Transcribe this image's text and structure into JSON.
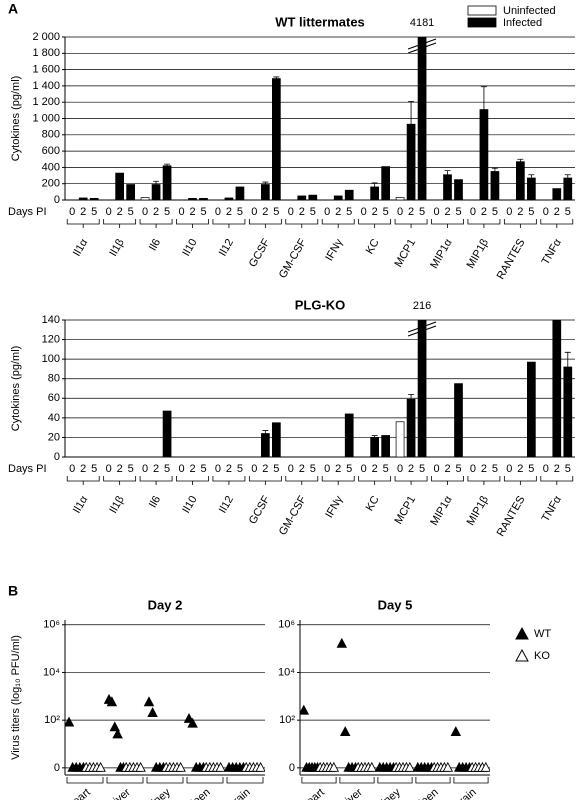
{
  "panels": [
    "A",
    "B"
  ],
  "legend_a": [
    {
      "name": "Uninfected",
      "color": "#ffffff"
    },
    {
      "name": "Infected",
      "color": "#000000"
    }
  ],
  "legend_b": [
    {
      "name": "WT",
      "color": "#000000"
    },
    {
      "name": "KO",
      "color": "#ffffff"
    }
  ],
  "chart_data": [
    {
      "type": "bar",
      "title": "WT littermates",
      "y_label": "Cytokines (pg/ml)",
      "x_label": "Days PI",
      "days": [
        0,
        2,
        5
      ],
      "categories": [
        "Il1α",
        "Il1β",
        "Il6",
        "Il10",
        "Il12",
        "GCSF",
        "GM-CSF",
        "IFNγ",
        "KC",
        "MCP1",
        "MIP1α",
        "MIP1β",
        "RANTES",
        "TNFα"
      ],
      "values": [
        [
          0,
          25,
          20
        ],
        [
          0,
          330,
          190
        ],
        [
          30,
          190,
          420
        ],
        [
          0,
          20,
          20
        ],
        [
          0,
          25,
          160
        ],
        [
          0,
          190,
          1490
        ],
        [
          0,
          50,
          60
        ],
        [
          0,
          50,
          120
        ],
        [
          0,
          160,
          410
        ],
        [
          30,
          930,
          4181
        ],
        [
          0,
          310,
          250
        ],
        [
          0,
          1110,
          350
        ],
        [
          0,
          470,
          270
        ],
        [
          0,
          140,
          270
        ]
      ],
      "errors": [
        [
          null,
          null,
          null
        ],
        [
          null,
          null,
          null
        ],
        [
          null,
          40,
          20
        ],
        [
          null,
          null,
          null
        ],
        [
          null,
          null,
          null
        ],
        [
          null,
          30,
          20
        ],
        [
          null,
          null,
          null
        ],
        [
          null,
          null,
          null
        ],
        [
          null,
          50,
          null
        ],
        [
          null,
          280,
          null
        ],
        [
          null,
          50,
          null
        ],
        [
          null,
          280,
          40
        ],
        [
          null,
          30,
          40
        ],
        [
          null,
          null,
          40
        ]
      ],
      "ylim": [
        0,
        2000
      ],
      "yticks": [
        0,
        200,
        400,
        600,
        800,
        {
          "value": 1000,
          "label": "1 000"
        },
        {
          "value": 1200,
          "label": "1 200"
        },
        {
          "value": 1400,
          "label": "1 400"
        },
        {
          "value": 1600,
          "label": "1 600"
        },
        {
          "value": 1800,
          "label": "1 800"
        },
        {
          "value": 2000,
          "label": "2 000"
        }
      ],
      "grid": true
    },
    {
      "type": "bar",
      "title": "PLG-KO",
      "y_label": "Cytokines (pg/ml)",
      "x_label": "Days PI",
      "days": [
        0,
        2,
        5
      ],
      "categories": [
        "Il1α",
        "Il1β",
        "Il6",
        "Il10",
        "Il12",
        "GCSF",
        "GM-CSF",
        "IFNγ",
        "KC",
        "MCP1",
        "MIP1α",
        "MIP1β",
        "RANTES",
        "TNFα"
      ],
      "values": [
        [
          0,
          0,
          0
        ],
        [
          0,
          0,
          0
        ],
        [
          0,
          0,
          47
        ],
        [
          0,
          0,
          0
        ],
        [
          0,
          0,
          0
        ],
        [
          0,
          24,
          35
        ],
        [
          0,
          0,
          0
        ],
        [
          0,
          0,
          44
        ],
        [
          0,
          20,
          22
        ],
        [
          36,
          59,
          216
        ],
        [
          0,
          0,
          75
        ],
        [
          0,
          0,
          0
        ],
        [
          0,
          0,
          97
        ],
        [
          0,
          140,
          92
        ]
      ],
      "errors": [
        [
          null,
          null,
          null
        ],
        [
          null,
          null,
          null
        ],
        [
          null,
          null,
          null
        ],
        [
          null,
          null,
          null
        ],
        [
          null,
          null,
          null
        ],
        [
          null,
          3,
          null
        ],
        [
          null,
          null,
          null
        ],
        [
          null,
          null,
          null
        ],
        [
          null,
          2,
          null
        ],
        [
          null,
          5,
          null
        ],
        [
          null,
          null,
          null
        ],
        [
          null,
          null,
          null
        ],
        [
          null,
          null,
          null
        ],
        [
          null,
          null,
          15
        ]
      ],
      "ylim": [
        0,
        140
      ],
      "yticks": [
        0,
        20,
        40,
        60,
        80,
        100,
        120,
        140
      ],
      "grid": true
    },
    {
      "type": "scatter",
      "title": "Day 2",
      "y_label": "Virus titers (log₁₀ PFU/ml)",
      "categories": [
        "Heart",
        "Liver",
        "Kidney",
        "Spleen",
        "Brain"
      ],
      "series": [
        {
          "values": [
            [
              1.9,
              0,
              0,
              0,
              0
            ],
            [
              2.85,
              2.75,
              1.7,
              1.4,
              0,
              0
            ],
            [
              2.75,
              2.3,
              0,
              0,
              0
            ],
            [
              2.05,
              1.85,
              0,
              0,
              0
            ],
            [
              0,
              0,
              0,
              0,
              0
            ]
          ]
        },
        {
          "values": [
            [
              0,
              0,
              0,
              0,
              0
            ],
            [
              0,
              0,
              0,
              0,
              0
            ],
            [
              0,
              0,
              0,
              0,
              0
            ],
            [
              0,
              0,
              0,
              0,
              0
            ],
            [
              0,
              0,
              0,
              0,
              0
            ]
          ]
        }
      ],
      "ylim": [
        -0.3,
        6.2
      ],
      "yticks": [
        0,
        {
          "value": 2,
          "label": "10²"
        },
        {
          "value": 4,
          "label": "10⁴"
        },
        {
          "value": 6,
          "label": "10⁶"
        }
      ],
      "grid": true
    },
    {
      "type": "scatter",
      "title": "Day 5",
      "categories": [
        "Heart",
        "Liver",
        "Kidney",
        "Spleen",
        "Brain"
      ],
      "series": [
        {
          "values": [
            [
              2.4,
              0,
              0,
              0,
              0,
              0
            ],
            [
              5.2,
              1.5,
              0,
              0,
              0
            ],
            [
              0,
              0,
              0,
              0,
              0
            ],
            [
              0,
              0,
              0,
              0,
              0
            ],
            [
              1.5,
              0,
              0,
              0,
              0
            ]
          ]
        },
        {
          "values": [
            [
              0,
              0,
              0,
              0,
              0
            ],
            [
              0,
              0,
              0,
              0,
              0
            ],
            [
              0,
              0,
              0,
              0,
              0
            ],
            [
              0,
              0,
              0,
              0,
              0
            ],
            [
              0,
              0,
              0,
              0,
              0
            ]
          ]
        }
      ],
      "ylim": [
        -0.3,
        6.2
      ],
      "yticks": [
        0,
        {
          "value": 2,
          "label": "10²"
        },
        {
          "value": 4,
          "label": "10⁴"
        },
        {
          "value": 6,
          "label": "10⁶"
        }
      ],
      "grid": true
    }
  ]
}
